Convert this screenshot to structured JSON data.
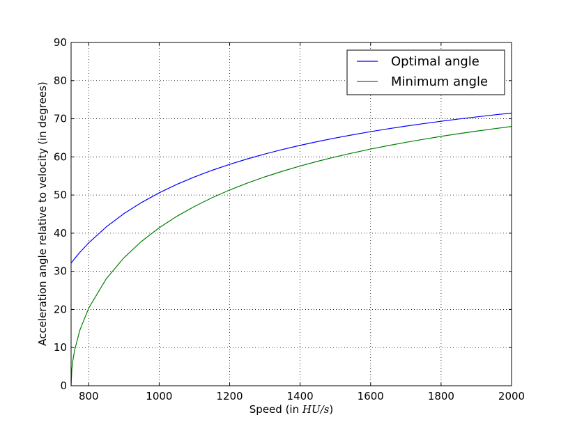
{
  "chart_data": {
    "type": "line",
    "title": "",
    "xlabel": "Speed (in ",
    "xlabel_math": "HU/s",
    "xlabel_end": ")",
    "ylabel": "Acceleration angle relative to velocity (in degrees)",
    "xlim": [
      750,
      2000
    ],
    "ylim": [
      0,
      90
    ],
    "xticks": [
      800,
      1000,
      1200,
      1400,
      1600,
      1800,
      2000
    ],
    "yticks": [
      0,
      10,
      20,
      30,
      40,
      50,
      60,
      70,
      80,
      90
    ],
    "grid": true,
    "legend_position": "top-right",
    "x": [
      750,
      752,
      755,
      760,
      775,
      800,
      850,
      900,
      950,
      1000,
      1050,
      1100,
      1150,
      1200,
      1250,
      1300,
      1350,
      1400,
      1450,
      1500,
      1550,
      1600,
      1650,
      1700,
      1750,
      1800,
      1850,
      1900,
      1950,
      2000
    ],
    "series": [
      {
        "name": "Optimal angle",
        "color": "#0000ff",
        "values": [
          32.15,
          32.39,
          32.73,
          33.33,
          34.98,
          37.47,
          41.66,
          45.13,
          48.05,
          50.58,
          52.79,
          54.74,
          56.48,
          58.05,
          59.47,
          60.76,
          61.94,
          63.03,
          64.03,
          64.96,
          65.81,
          66.62,
          67.37,
          68.07,
          68.72,
          69.34,
          69.93,
          70.48,
          71.0,
          71.49
        ]
      },
      {
        "name": "Minimum angle",
        "color": "#008000",
        "values": [
          0,
          4.18,
          6.6,
          9.31,
          14.59,
          20.36,
          28.07,
          33.56,
          37.86,
          41.41,
          44.42,
          47.01,
          49.29,
          51.32,
          53.13,
          54.77,
          56.25,
          57.61,
          58.85,
          60.0,
          61.06,
          62.05,
          62.96,
          63.82,
          64.62,
          65.38,
          66.08,
          66.75,
          67.38,
          67.98
        ]
      }
    ]
  }
}
